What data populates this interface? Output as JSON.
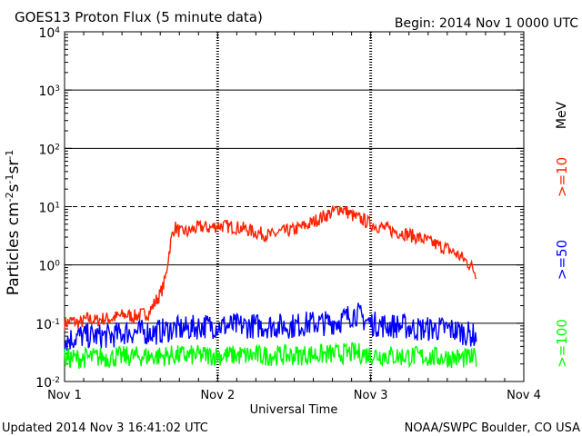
{
  "header": {
    "title": "GOES13 Proton Flux (5 minute data)",
    "begin": "Begin: 2014 Nov 1 0000 UTC"
  },
  "footer": {
    "updated": "Updated 2014 Nov  3 16:41:02 UTC",
    "source": "NOAA/SWPC Boulder, CO USA"
  },
  "chart_data": {
    "type": "line",
    "title": "GOES13 Proton Flux (5 minute data)",
    "xlabel": "Universal Time",
    "ylabel": "Particles cm-2s-1sr-1",
    "yscale": "log",
    "ylim": [
      0.01,
      10000
    ],
    "xlim": [
      0,
      3
    ],
    "x_ticks": [
      {
        "value": 0,
        "label": "Nov 1"
      },
      {
        "value": 1,
        "label": "Nov 2"
      },
      {
        "value": 2,
        "label": "Nov 3"
      },
      {
        "value": 3,
        "label": "Nov 4"
      }
    ],
    "y_ticks": [
      {
        "value": 0.01,
        "label": "10",
        "exp": "-2"
      },
      {
        "value": 0.1,
        "label": "10",
        "exp": "-1"
      },
      {
        "value": 1,
        "label": "10",
        "exp": "0"
      },
      {
        "value": 10,
        "label": "10",
        "exp": "1"
      },
      {
        "value": 100,
        "label": "10",
        "exp": "2"
      },
      {
        "value": 1000,
        "label": "10",
        "exp": "3"
      },
      {
        "value": 10000,
        "label": "10",
        "exp": "4"
      }
    ],
    "threshold_lines": [
      10
    ],
    "grid": "horizontal solid at decades, dashed at 10",
    "legend_position": "right-vertical",
    "unit_label": "MeV",
    "series": [
      {
        "name": ">=10",
        "color": "#ff2200",
        "x": [
          0,
          0.05,
          0.1,
          0.15,
          0.2,
          0.25,
          0.3,
          0.35,
          0.4,
          0.45,
          0.5,
          0.55,
          0.6,
          0.62,
          0.64,
          0.66,
          0.68,
          0.7,
          0.72,
          0.74,
          0.76,
          0.78,
          0.8,
          0.85,
          0.9,
          0.95,
          1.0,
          1.05,
          1.1,
          1.15,
          1.2,
          1.25,
          1.3,
          1.35,
          1.4,
          1.45,
          1.5,
          1.55,
          1.6,
          1.65,
          1.7,
          1.75,
          1.8,
          1.85,
          1.9,
          1.95,
          2.0,
          2.05,
          2.1,
          2.15,
          2.2,
          2.25,
          2.3,
          2.35,
          2.4,
          2.45,
          2.5,
          2.55,
          2.6,
          2.65,
          2.69
        ],
        "y": [
          0.1,
          0.11,
          0.1,
          0.12,
          0.11,
          0.12,
          0.12,
          0.13,
          0.14,
          0.13,
          0.14,
          0.15,
          0.25,
          0.3,
          0.4,
          0.6,
          1.5,
          3.0,
          4.5,
          4.0,
          3.5,
          3.8,
          3.6,
          4.2,
          4.5,
          4.3,
          4.8,
          4.6,
          4.5,
          4.3,
          4.0,
          3.6,
          3.4,
          3.2,
          3.6,
          3.8,
          4.0,
          4.5,
          5.0,
          6.0,
          7.0,
          8.0,
          9.5,
          8.0,
          6.5,
          6.0,
          5.0,
          4.6,
          4.2,
          3.8,
          3.6,
          3.3,
          3.0,
          2.7,
          2.4,
          2.1,
          1.9,
          1.6,
          1.3,
          1.0,
          0.7
        ]
      },
      {
        "name": ">=50",
        "color": "#0000ff",
        "x": [
          0,
          0.1,
          0.2,
          0.3,
          0.4,
          0.5,
          0.6,
          0.7,
          0.8,
          0.9,
          1.0,
          1.1,
          1.2,
          1.3,
          1.4,
          1.5,
          1.6,
          1.7,
          1.8,
          1.85,
          1.9,
          1.95,
          2.0,
          2.1,
          2.2,
          2.3,
          2.4,
          2.5,
          2.6,
          2.69
        ],
        "y": [
          0.05,
          0.06,
          0.06,
          0.06,
          0.07,
          0.07,
          0.07,
          0.08,
          0.08,
          0.09,
          0.09,
          0.09,
          0.09,
          0.09,
          0.09,
          0.09,
          0.1,
          0.1,
          0.11,
          0.13,
          0.15,
          0.12,
          0.1,
          0.09,
          0.09,
          0.08,
          0.08,
          0.08,
          0.07,
          0.06
        ]
      },
      {
        "name": ">=100",
        "color": "#00ff00",
        "x": [
          0,
          0.1,
          0.2,
          0.3,
          0.4,
          0.5,
          0.6,
          0.7,
          0.8,
          0.9,
          1.0,
          1.1,
          1.2,
          1.3,
          1.4,
          1.5,
          1.6,
          1.7,
          1.8,
          1.9,
          2.0,
          2.1,
          2.2,
          2.3,
          2.4,
          2.5,
          2.6,
          2.69
        ],
        "y": [
          0.025,
          0.025,
          0.026,
          0.026,
          0.027,
          0.027,
          0.027,
          0.028,
          0.028,
          0.028,
          0.028,
          0.028,
          0.028,
          0.028,
          0.028,
          0.028,
          0.029,
          0.029,
          0.03,
          0.031,
          0.029,
          0.028,
          0.027,
          0.027,
          0.026,
          0.026,
          0.025,
          0.025
        ]
      }
    ]
  }
}
